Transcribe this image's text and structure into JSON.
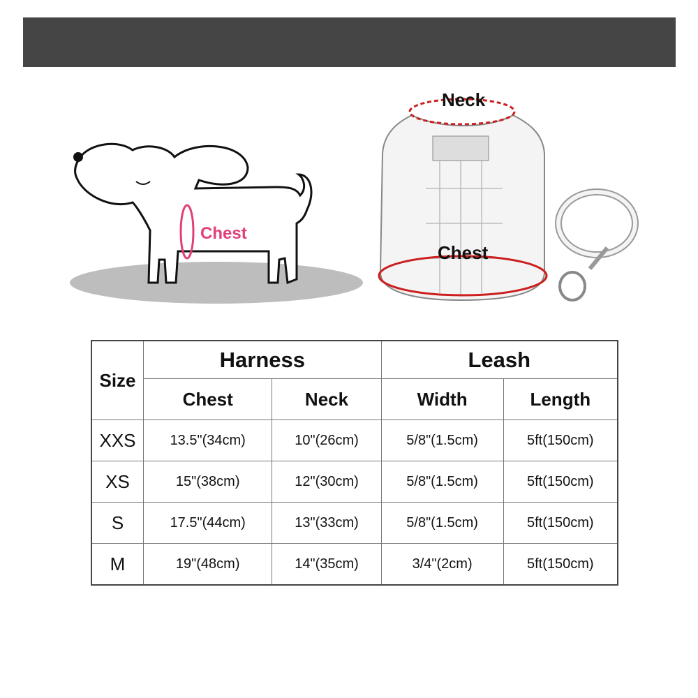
{
  "diagram": {
    "dog_label": "Chest",
    "harness_neck_label": "Neck",
    "harness_chest_label": "Chest",
    "accent_color": "#e0407a",
    "measure_line_color": "#cc1f1f"
  },
  "table": {
    "size_header": "Size",
    "groups": [
      "Harness",
      "Leash"
    ],
    "columns": [
      "Chest",
      "Neck",
      "Width",
      "Length"
    ],
    "rows": [
      {
        "size": "XXS",
        "values": [
          "13.5\"(34cm)",
          "10\"(26cm)",
          "5/8\"(1.5cm)",
          "5ft(150cm)"
        ]
      },
      {
        "size": "XS",
        "values": [
          "15\"(38cm)",
          "12\"(30cm)",
          "5/8\"(1.5cm)",
          "5ft(150cm)"
        ]
      },
      {
        "size": "S",
        "values": [
          "17.5\"(44cm)",
          "13\"(33cm)",
          "5/8\"(1.5cm)",
          "5ft(150cm)"
        ]
      },
      {
        "size": "M",
        "values": [
          "19\"(48cm)",
          "14\"(35cm)",
          "3/4\"(2cm)",
          "5ft(150cm)"
        ]
      }
    ]
  }
}
